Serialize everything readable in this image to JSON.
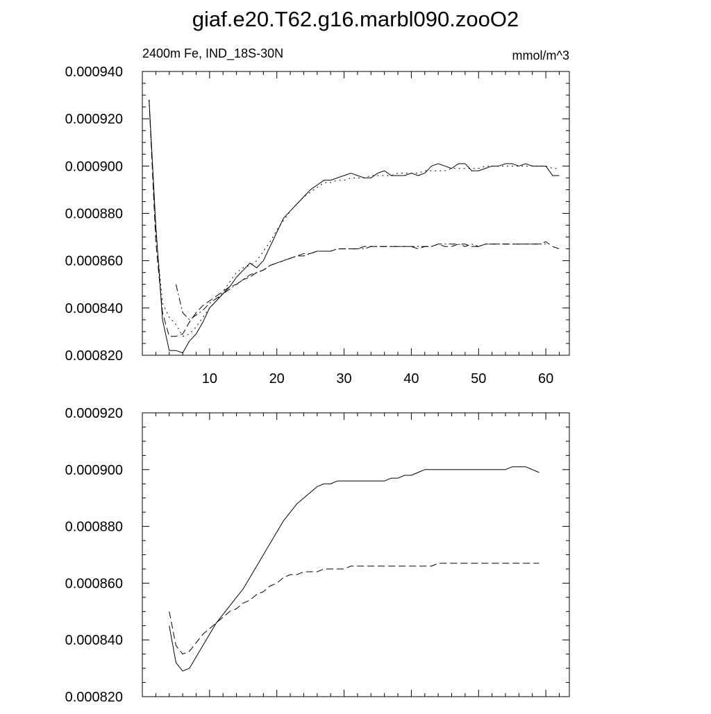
{
  "title": "giaf.e20.T62.g16.marbl090.zooO2",
  "colors": {
    "axis": "#000000",
    "line": "#000000",
    "background": "#ffffff"
  },
  "chart_data": [
    {
      "type": "line",
      "left_label": "2400m Fe, IND_18S-30N",
      "right_label": "mmol/m^3",
      "xlim": [
        0,
        63.5
      ],
      "ylim": [
        0.00082,
        0.00094
      ],
      "x_ticks": [
        "10",
        "20",
        "30",
        "40",
        "50",
        "60"
      ],
      "y_ticks": [
        "0.000820",
        "0.000840",
        "0.000860",
        "0.000880",
        "0.000900",
        "0.000920",
        "0.000940"
      ],
      "series": [
        {
          "style": "solid",
          "x": [
            1,
            2,
            3,
            4,
            5,
            6,
            7,
            8,
            9,
            10,
            11,
            12,
            13,
            14,
            15,
            16,
            17,
            18,
            19,
            20,
            21,
            22,
            23,
            24,
            25,
            26,
            27,
            28,
            29,
            30,
            31,
            32,
            33,
            34,
            35,
            36,
            37,
            38,
            39,
            40,
            41,
            42,
            43,
            44,
            45,
            46,
            47,
            48,
            49,
            50,
            51,
            52,
            53,
            54,
            55,
            56,
            57,
            58,
            59,
            60,
            61,
            62
          ],
          "y": [
            0.000928,
            0.000875,
            0.000835,
            0.000822,
            0.000822,
            0.000821,
            0.000826,
            0.000829,
            0.000834,
            0.00084,
            0.000843,
            0.000846,
            0.000849,
            0.000853,
            0.000856,
            0.000859,
            0.000857,
            0.00086,
            0.000866,
            0.000872,
            0.000878,
            0.000881,
            0.000884,
            0.000887,
            0.00089,
            0.000892,
            0.000894,
            0.000894,
            0.000895,
            0.000896,
            0.000897,
            0.000896,
            0.000895,
            0.000895,
            0.000897,
            0.000898,
            0.000896,
            0.000896,
            0.000896,
            0.000897,
            0.000896,
            0.000897,
            0.0009,
            0.000901,
            0.0009,
            0.000899,
            0.000901,
            0.000901,
            0.000898,
            0.000898,
            0.000899,
            0.0009,
            0.0009,
            0.000901,
            0.000901,
            0.0009,
            0.000901,
            0.0009,
            0.0009,
            0.0009,
            0.000896,
            0.000896
          ]
        },
        {
          "style": "dotted",
          "x": [
            1,
            2,
            3,
            4,
            5,
            6,
            7,
            8,
            9,
            10,
            11,
            12,
            13,
            14,
            15,
            16,
            17,
            18,
            19,
            20,
            21,
            22,
            23,
            24,
            25,
            26,
            27,
            28,
            29,
            30,
            31,
            32,
            33,
            34,
            35,
            36,
            37,
            38,
            39,
            40,
            41,
            42,
            43,
            44,
            45,
            46,
            47,
            48,
            49,
            50,
            51,
            52,
            53,
            54,
            55,
            56,
            57,
            58,
            59,
            60,
            61,
            62
          ],
          "y": [
            0.000928,
            0.000872,
            0.000842,
            0.000836,
            0.000833,
            0.000828,
            0.000829,
            0.000832,
            0.000836,
            0.00084,
            0.000843,
            0.000847,
            0.000851,
            0.000855,
            0.000857,
            0.000858,
            0.00086,
            0.000864,
            0.000868,
            0.000873,
            0.000877,
            0.000881,
            0.000884,
            0.000887,
            0.000889,
            0.000891,
            0.000893,
            0.000893,
            0.000894,
            0.000894,
            0.000895,
            0.000895,
            0.000895,
            0.000896,
            0.000896,
            0.000896,
            0.000896,
            0.000897,
            0.000897,
            0.000897,
            0.000897,
            0.000898,
            0.000898,
            0.000898,
            0.000898,
            0.000899,
            0.000899,
            0.000899,
            0.000899,
            0.000899,
            0.0009,
            0.0009,
            0.0009,
            0.0009,
            0.0009,
            0.0009,
            0.0009,
            0.0009,
            0.0009,
            0.0009,
            0.000899,
            0.000899
          ]
        },
        {
          "style": "dashed",
          "x": [
            1,
            2,
            3,
            4,
            5,
            6,
            7,
            8,
            9,
            10,
            11,
            12,
            13,
            14,
            15,
            16,
            17,
            18,
            19,
            20,
            21,
            22,
            23,
            24,
            25,
            26,
            27,
            28,
            29,
            30,
            31,
            32,
            33,
            34,
            35,
            36,
            37,
            38,
            39,
            40,
            41,
            42,
            43,
            44,
            45,
            46,
            47,
            48,
            49,
            50,
            51,
            52,
            53,
            54,
            55,
            56,
            57,
            58,
            59,
            60,
            61,
            62
          ],
          "y": [
            0.000928,
            0.000868,
            0.000838,
            0.000828,
            0.000828,
            0.000829,
            0.000834,
            0.000838,
            0.000841,
            0.000843,
            0.000845,
            0.000847,
            0.000849,
            0.00085,
            0.000852,
            0.000853,
            0.000855,
            0.000856,
            0.000858,
            0.000859,
            0.00086,
            0.000861,
            0.000862,
            0.000863,
            0.000863,
            0.000864,
            0.000864,
            0.000864,
            0.000865,
            0.000865,
            0.000865,
            0.000865,
            0.000866,
            0.000866,
            0.000866,
            0.000866,
            0.000866,
            0.000866,
            0.000866,
            0.000866,
            0.000865,
            0.000866,
            0.000866,
            0.000867,
            0.000866,
            0.000866,
            0.000867,
            0.000867,
            0.000866,
            0.000866,
            0.000867,
            0.000867,
            0.000867,
            0.000867,
            0.000867,
            0.000867,
            0.000867,
            0.000867,
            0.000867,
            0.000868,
            0.000866,
            0.000865
          ]
        },
        {
          "style": "dashdot",
          "x": [
            5,
            6,
            7,
            8,
            9,
            10,
            11,
            12,
            13,
            14,
            15,
            16,
            17,
            18,
            19,
            20,
            21,
            22,
            23,
            24,
            25,
            26,
            27,
            28,
            29,
            30,
            31,
            32,
            33,
            34,
            35,
            36,
            37,
            38,
            39,
            40,
            41,
            42,
            43,
            44,
            45,
            46,
            47,
            48,
            49,
            50,
            51,
            52,
            53,
            54,
            55,
            56,
            57,
            58,
            59,
            60
          ],
          "y": [
            0.00085,
            0.000838,
            0.000835,
            0.000837,
            0.000839,
            0.000842,
            0.000844,
            0.000846,
            0.000848,
            0.00085,
            0.000852,
            0.000854,
            0.000855,
            0.000856,
            0.000858,
            0.000859,
            0.00086,
            0.000861,
            0.000862,
            0.000862,
            0.000863,
            0.000864,
            0.000864,
            0.000864,
            0.000865,
            0.000865,
            0.000865,
            0.000865,
            0.000865,
            0.000866,
            0.000866,
            0.000866,
            0.000866,
            0.000866,
            0.000866,
            0.000866,
            0.000866,
            0.000866,
            0.000866,
            0.000867,
            0.000867,
            0.000867,
            0.000867,
            0.000866,
            0.000867,
            0.000866,
            0.000867,
            0.000867,
            0.000867,
            0.000867,
            0.000867,
            0.000867,
            0.000867,
            0.000867,
            0.000867,
            0.000867
          ]
        }
      ]
    },
    {
      "type": "line",
      "xlim": [
        0,
        63.5
      ],
      "ylim": [
        0.00082,
        0.00092
      ],
      "x_ticks": [
        "",
        "",
        "",
        "",
        "",
        ""
      ],
      "y_ticks": [
        "0.000820",
        "0.000840",
        "0.000860",
        "0.000880",
        "0.000900",
        "0.000920"
      ],
      "series": [
        {
          "style": "solid",
          "x": [
            4,
            5,
            6,
            7,
            8,
            9,
            10,
            11,
            12,
            13,
            14,
            15,
            16,
            17,
            18,
            19,
            20,
            21,
            22,
            23,
            24,
            25,
            26,
            27,
            28,
            29,
            30,
            31,
            32,
            33,
            34,
            35,
            36,
            37,
            38,
            39,
            40,
            41,
            42,
            43,
            44,
            45,
            46,
            47,
            48,
            49,
            50,
            51,
            52,
            53,
            54,
            55,
            56,
            57,
            58,
            59
          ],
          "y": [
            0.000845,
            0.000832,
            0.000829,
            0.00083,
            0.000834,
            0.000838,
            0.000842,
            0.000846,
            0.000849,
            0.000852,
            0.000855,
            0.000858,
            0.000862,
            0.000866,
            0.00087,
            0.000874,
            0.000878,
            0.000882,
            0.000885,
            0.000888,
            0.00089,
            0.000892,
            0.000894,
            0.000895,
            0.000895,
            0.000896,
            0.000896,
            0.000896,
            0.000896,
            0.000896,
            0.000896,
            0.000896,
            0.000896,
            0.000897,
            0.000897,
            0.000898,
            0.000898,
            0.000899,
            0.0009,
            0.0009,
            0.0009,
            0.0009,
            0.0009,
            0.0009,
            0.0009,
            0.0009,
            0.0009,
            0.0009,
            0.0009,
            0.0009,
            0.0009,
            0.000901,
            0.000901,
            0.000901,
            0.0009,
            0.000899
          ]
        },
        {
          "style": "dashed",
          "x": [
            4,
            5,
            6,
            7,
            8,
            9,
            10,
            11,
            12,
            13,
            14,
            15,
            16,
            17,
            18,
            19,
            20,
            21,
            22,
            23,
            24,
            25,
            26,
            27,
            28,
            29,
            30,
            31,
            32,
            33,
            34,
            35,
            36,
            37,
            38,
            39,
            40,
            41,
            42,
            43,
            44,
            45,
            46,
            47,
            48,
            49,
            50,
            51,
            52,
            53,
            54,
            55,
            56,
            57,
            58,
            59
          ],
          "y": [
            0.00085,
            0.000838,
            0.000835,
            0.000836,
            0.000839,
            0.000842,
            0.000844,
            0.000846,
            0.000848,
            0.00085,
            0.000851,
            0.000853,
            0.000854,
            0.000856,
            0.000857,
            0.000859,
            0.00086,
            0.000862,
            0.000863,
            0.000863,
            0.000864,
            0.000864,
            0.000864,
            0.000865,
            0.000865,
            0.000865,
            0.000865,
            0.000866,
            0.000866,
            0.000866,
            0.000866,
            0.000866,
            0.000866,
            0.000866,
            0.000866,
            0.000866,
            0.000866,
            0.000866,
            0.000866,
            0.000866,
            0.000867,
            0.000867,
            0.000867,
            0.000867,
            0.000867,
            0.000867,
            0.000867,
            0.000867,
            0.000867,
            0.000867,
            0.000867,
            0.000867,
            0.000867,
            0.000867,
            0.000867,
            0.000867
          ]
        }
      ]
    }
  ]
}
